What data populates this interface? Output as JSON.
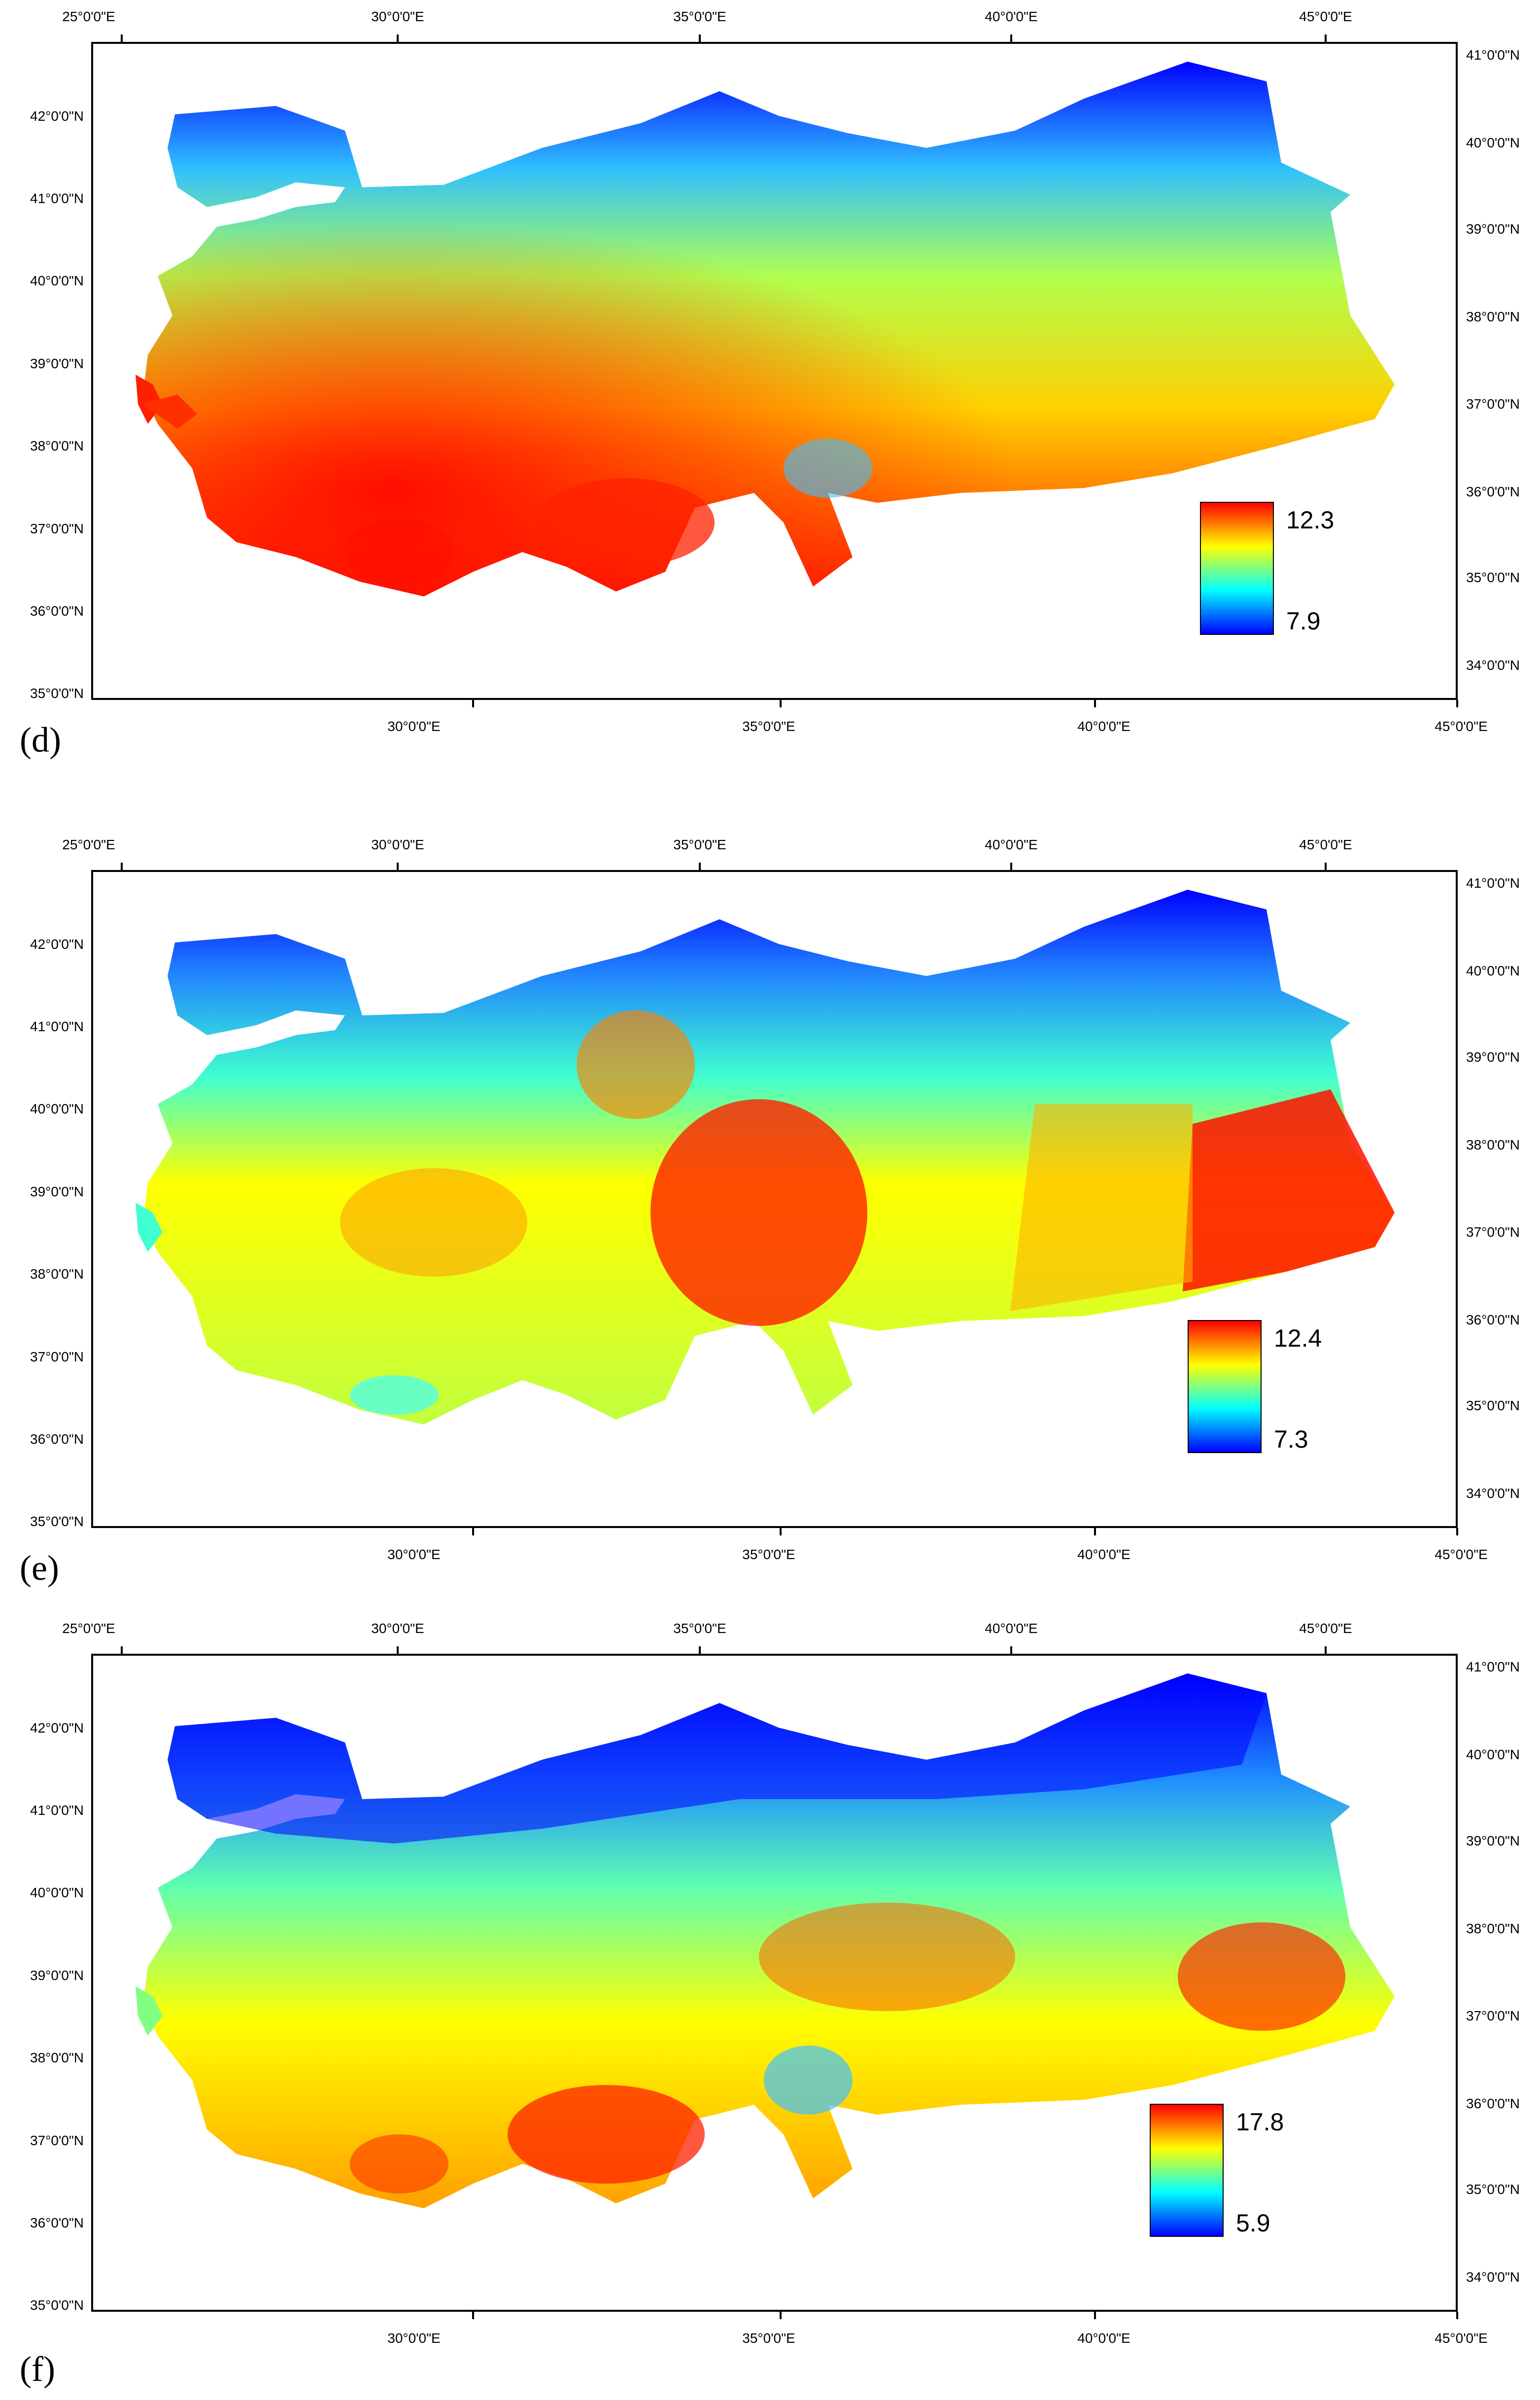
{
  "colors": {
    "ramp": [
      "#0000ff",
      "#0080ff",
      "#00ffff",
      "#80ff80",
      "#ffff00",
      "#ff8000",
      "#ff0000"
    ],
    "frame": "#000000",
    "background": "#ffffff"
  },
  "axes": {
    "top_lon": [
      "25°0'0\"E",
      "30°0'0\"E",
      "35°0'0\"E",
      "40°0'0\"E",
      "45°0'0\"E"
    ],
    "bottom_lon": [
      "30°0'0\"E",
      "35°0'0\"E",
      "40°0'0\"E",
      "45°0'0\"E"
    ],
    "left_lat": [
      "42°0'0\"N",
      "41°0'0\"N",
      "40°0'0\"N",
      "39°0'0\"N",
      "38°0'0\"N",
      "37°0'0\"N",
      "36°0'0\"N",
      "35°0'0\"N"
    ],
    "right_lat": [
      "41°0'0\"N",
      "40°0'0\"N",
      "39°0'0\"N",
      "38°0'0\"N",
      "37°0'0\"N",
      "36°0'0\"N",
      "35°0'0\"N",
      "34°0'0\"N"
    ]
  },
  "panels": [
    {
      "letter": "(d)",
      "legend": {
        "max": "12.3",
        "min": "7.9"
      }
    },
    {
      "letter": "(e)",
      "legend": {
        "max": "12.4",
        "min": "7.3"
      }
    },
    {
      "letter": "(f)",
      "legend": {
        "max": "17.8",
        "min": "5.9"
      }
    }
  ]
}
